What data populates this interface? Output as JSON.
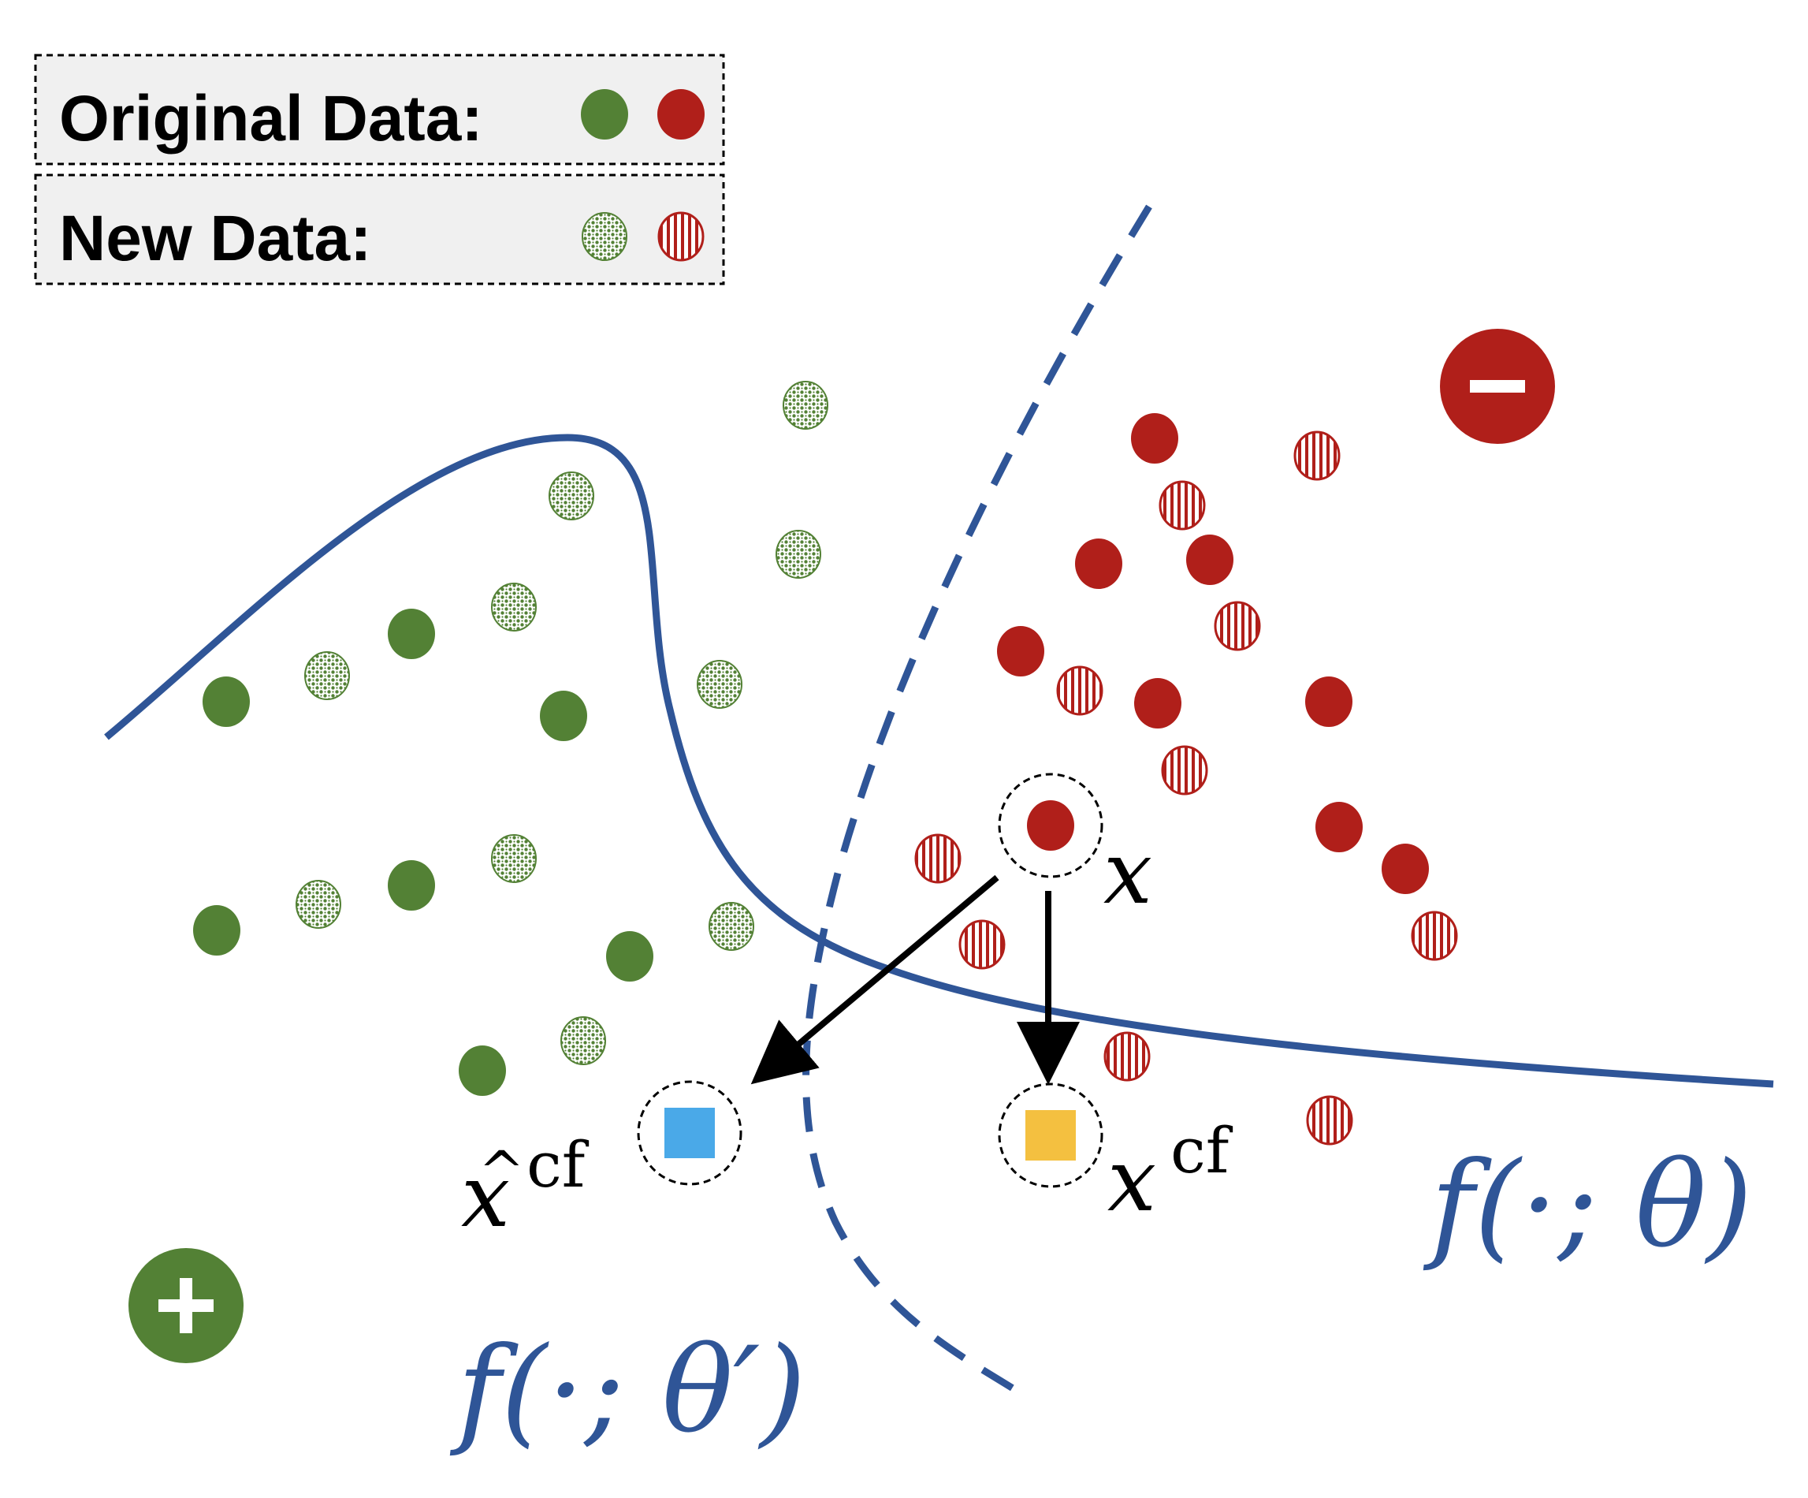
{
  "legend": {
    "original_label": "Original Data:",
    "new_label": "New Data:"
  },
  "labels": {
    "x_main": "x",
    "x_hat_base": "x",
    "x_hat_accent": "^",
    "x_cf_base": "x",
    "cf_sup": "cf",
    "f_theta": "f(·; θ)",
    "f_theta_prime": "f(·; θ′)",
    "plus": "+",
    "minus": "−"
  },
  "colors": {
    "positive": "#538135",
    "negative": "#b01f1a",
    "boundary": "#2f5597",
    "hat_cf_marker": "#4aa9e8",
    "cf_marker": "#f4c040",
    "legend_bg": "#f0f0f0",
    "text": "#000000"
  }
}
